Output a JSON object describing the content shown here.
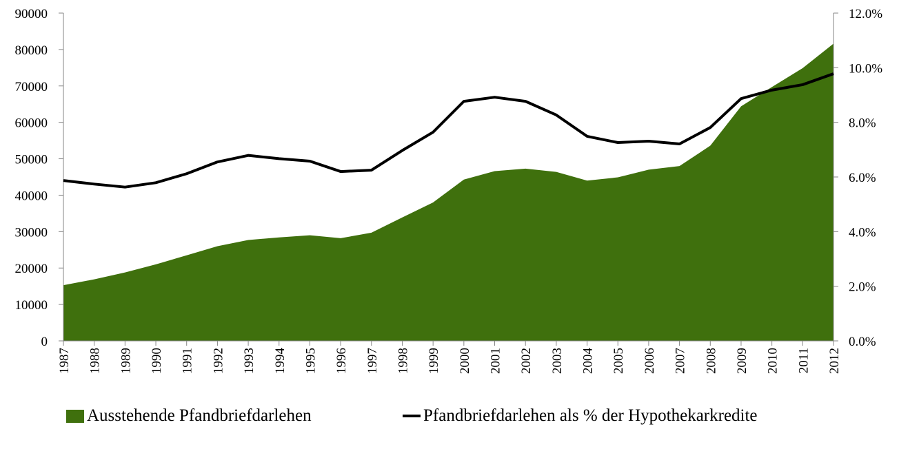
{
  "chart_data": {
    "type": "area",
    "title": "",
    "xlabel": "",
    "ylabel": "",
    "categories": [
      "1987",
      "1988",
      "1989",
      "1990",
      "1991",
      "1992",
      "1993",
      "1994",
      "1995",
      "1996",
      "1997",
      "1998",
      "1999",
      "2000",
      "2001",
      "2002",
      "2003",
      "2004",
      "2005",
      "2006",
      "2007",
      "2008",
      "2009",
      "2010",
      "2011",
      "2012"
    ],
    "ylim": [
      0,
      90000
    ],
    "yticks": [
      "0",
      "10000",
      "20000",
      "30000",
      "40000",
      "50000",
      "60000",
      "70000",
      "80000",
      "90000"
    ],
    "y2lim": [
      0,
      12.0
    ],
    "y2ticks": [
      "0.0%",
      "2.0%",
      "4.0%",
      "6.0%",
      "8.0%",
      "10.0%",
      "12.0%"
    ],
    "grid": false,
    "legend_position": "bottom",
    "series": [
      {
        "name": "Ausstehende Pfandbriefdarlehen",
        "type": "area",
        "axis": "left",
        "color": "#3f700d",
        "values": [
          15300,
          16900,
          18800,
          21000,
          23500,
          26000,
          27700,
          28400,
          29000,
          28200,
          29700,
          33900,
          38000,
          44300,
          46600,
          47300,
          46400,
          44000,
          44900,
          47000,
          48000,
          53600,
          64400,
          69700,
          74900,
          81600
        ]
      },
      {
        "name": "Pfandbriefdarlehen als % der Hypothekarkredite",
        "type": "line",
        "axis": "right",
        "color": "#000000",
        "values": [
          5.87,
          5.74,
          5.63,
          5.79,
          6.12,
          6.55,
          6.79,
          6.67,
          6.58,
          6.2,
          6.25,
          6.97,
          7.64,
          8.77,
          8.92,
          8.77,
          8.27,
          7.49,
          7.26,
          7.31,
          7.21,
          7.81,
          8.87,
          9.18,
          9.38,
          9.78
        ]
      }
    ]
  },
  "legend": {
    "area_label": "Ausstehende Pfandbriefdarlehen",
    "line_label": "Pfandbriefdarlehen als % der Hypothekarkredite"
  }
}
